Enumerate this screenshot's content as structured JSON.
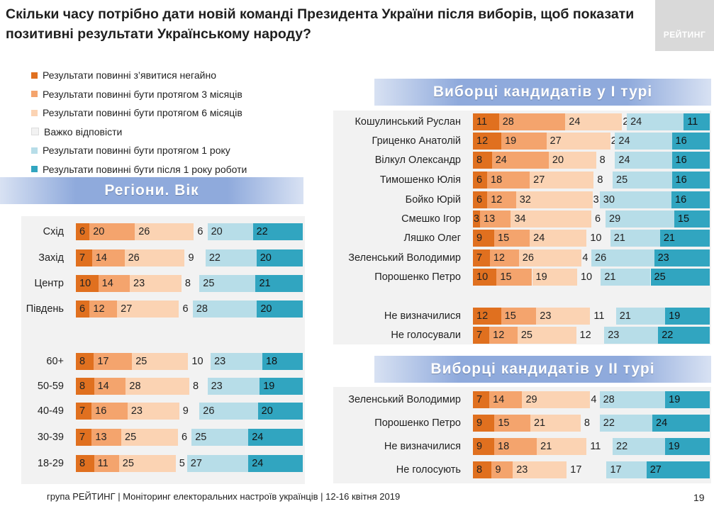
{
  "title": "Скільки часу потрібно дати новій команді Президента України після виборів, щоб показати позитивні результати Українському народу?",
  "logo": "РЕЙТИНГ",
  "colors": [
    "#e0701f",
    "#f4a46d",
    "#fbd3b3",
    "#f2f2f2",
    "#b7dde8",
    "#31a5c0"
  ],
  "legend": [
    "Результати повинні з’явитися негайно",
    "Результати повинні бути протягом 3 місяців",
    "Результати повинні бути протягом 6 місяців",
    "Важко відповісти",
    "Результати повинні бути протягом 1 року",
    "Результати повинні бути після 1 року роботи"
  ],
  "banners": {
    "regions": "Регіони. Вік",
    "round1": "Виборці кандидатів у I турі",
    "round2": "Виборці кандидатів у II турі"
  },
  "footer": "група РЕЙТИНГ | Моніторинг електоральних настроїв українців  |  12-16 квітня  2019",
  "page": "19",
  "chart_data": [
    {
      "type": "bar",
      "stacked": "horizontal",
      "title": "Регіони. Вік",
      "categories": [
        "Схід",
        "Захід",
        "Центр",
        "Південь",
        "60+",
        "50-59",
        "40-49",
        "30-39",
        "18-29"
      ],
      "values": [
        [
          6,
          20,
          26,
          6,
          20,
          22
        ],
        [
          7,
          14,
          26,
          9,
          22,
          20
        ],
        [
          10,
          14,
          23,
          8,
          25,
          21
        ],
        [
          6,
          12,
          27,
          6,
          28,
          20
        ],
        [
          8,
          17,
          25,
          10,
          23,
          18
        ],
        [
          8,
          14,
          28,
          8,
          23,
          19
        ],
        [
          7,
          16,
          23,
          9,
          26,
          20
        ],
        [
          7,
          13,
          25,
          6,
          25,
          24
        ],
        [
          8,
          11,
          25,
          5,
          27,
          24
        ]
      ]
    },
    {
      "type": "bar",
      "stacked": "horizontal",
      "title": "Виборці кандидатів у I турі",
      "categories": [
        "Кошулинський Руслан",
        "Гриценко Анатолій",
        "Вілкул Олександр",
        "Тимошенко Юлія",
        "Бойко Юрій",
        "Смешко Ігор",
        "Ляшко Олег",
        "Зеленський Володимир",
        "Порошенко Петро",
        "Не визначилися",
        "Не голосували"
      ],
      "values": [
        [
          11,
          28,
          24,
          2,
          24,
          11
        ],
        [
          12,
          19,
          27,
          2,
          24,
          16
        ],
        [
          8,
          24,
          20,
          8,
          24,
          16
        ],
        [
          6,
          18,
          27,
          8,
          25,
          16
        ],
        [
          6,
          12,
          32,
          3,
          30,
          16
        ],
        [
          3,
          13,
          34,
          6,
          29,
          15
        ],
        [
          9,
          15,
          24,
          10,
          21,
          21
        ],
        [
          7,
          12,
          26,
          4,
          26,
          23
        ],
        [
          10,
          15,
          19,
          10,
          21,
          25
        ],
        [
          12,
          15,
          23,
          11,
          21,
          19
        ],
        [
          7,
          12,
          25,
          12,
          23,
          22
        ]
      ]
    },
    {
      "type": "bar",
      "stacked": "horizontal",
      "title": "Виборці кандидатів у II турі",
      "categories": [
        "Зеленський Володимир",
        "Порошенко Петро",
        "Не визначилися",
        "Не голосують"
      ],
      "values": [
        [
          7,
          14,
          29,
          4,
          28,
          19
        ],
        [
          9,
          15,
          21,
          8,
          22,
          24
        ],
        [
          9,
          18,
          21,
          11,
          22,
          19
        ],
        [
          8,
          9,
          23,
          17,
          17,
          27
        ]
      ]
    }
  ]
}
